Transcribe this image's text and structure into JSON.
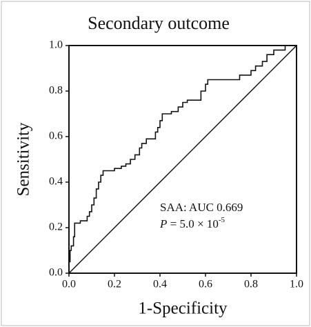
{
  "chart_data": {
    "type": "line",
    "title": "Secondary outcome",
    "x_label": "1-Specificity",
    "y_label": "Sensitivity",
    "xlim": [
      0,
      1
    ],
    "ylim": [
      0,
      1
    ],
    "xticks": [
      {
        "value": 0,
        "label": "0.0"
      },
      {
        "value": 0.2,
        "label": "0.2"
      },
      {
        "value": 0.4,
        "label": "0.4"
      },
      {
        "value": 0.6,
        "label": "0.6"
      },
      {
        "value": 0.8,
        "label": "0.8"
      },
      {
        "value": 1,
        "label": "1.0"
      }
    ],
    "yticks": [
      {
        "value": 0,
        "label": "0.0"
      },
      {
        "value": 0.2,
        "label": "0.2"
      },
      {
        "value": 0.4,
        "label": "0.4"
      },
      {
        "value": 0.6,
        "label": "0.6"
      },
      {
        "value": 0.8,
        "label": "0.8"
      },
      {
        "value": 1,
        "label": "1.0"
      }
    ],
    "series": [
      {
        "color": "#111111",
        "x": [
          0,
          0,
          0.005,
          0.005,
          0.01,
          0.01,
          0.02,
          0.02,
          0.025,
          0.025,
          0.05,
          0.05,
          0.08,
          0.08,
          0.09,
          0.09,
          0.1,
          0.1,
          0.11,
          0.11,
          0.12,
          0.12,
          0.13,
          0.13,
          0.14,
          0.14,
          0.15,
          0.15,
          0.2,
          0.2,
          0.23,
          0.23,
          0.25,
          0.25,
          0.27,
          0.27,
          0.29,
          0.29,
          0.31,
          0.31,
          0.32,
          0.32,
          0.34,
          0.34,
          0.38,
          0.38,
          0.39,
          0.39,
          0.4,
          0.4,
          0.41,
          0.41,
          0.45,
          0.45,
          0.48,
          0.48,
          0.5,
          0.5,
          0.52,
          0.52,
          0.58,
          0.58,
          0.6,
          0.6,
          0.61,
          0.61,
          0.75,
          0.75,
          0.8,
          0.8,
          0.82,
          0.82,
          0.85,
          0.85,
          0.87,
          0.87,
          0.9,
          0.9,
          0.95,
          0.95,
          1
        ],
        "values": [
          0,
          0.05,
          0.05,
          0.1,
          0.1,
          0.12,
          0.12,
          0.16,
          0.16,
          0.22,
          0.22,
          0.23,
          0.23,
          0.25,
          0.25,
          0.27,
          0.27,
          0.3,
          0.3,
          0.33,
          0.33,
          0.37,
          0.37,
          0.4,
          0.4,
          0.43,
          0.43,
          0.45,
          0.45,
          0.46,
          0.46,
          0.47,
          0.47,
          0.48,
          0.48,
          0.5,
          0.5,
          0.52,
          0.52,
          0.55,
          0.55,
          0.57,
          0.57,
          0.59,
          0.59,
          0.62,
          0.62,
          0.64,
          0.64,
          0.67,
          0.67,
          0.7,
          0.7,
          0.71,
          0.71,
          0.73,
          0.73,
          0.75,
          0.75,
          0.76,
          0.76,
          0.8,
          0.8,
          0.83,
          0.83,
          0.85,
          0.85,
          0.87,
          0.87,
          0.89,
          0.89,
          0.91,
          0.91,
          0.93,
          0.93,
          0.96,
          0.96,
          0.98,
          0.98,
          1,
          1
        ]
      }
    ],
    "diagonal": {
      "x": [
        0,
        1
      ],
      "values": [
        0,
        1
      ],
      "color": "#111111"
    },
    "annotations": [
      {
        "text": "SAA: AUC 0.669"
      },
      {
        "italic": "P",
        "text": " = 5.0 × 10",
        "superscript": "-5"
      }
    ]
  }
}
